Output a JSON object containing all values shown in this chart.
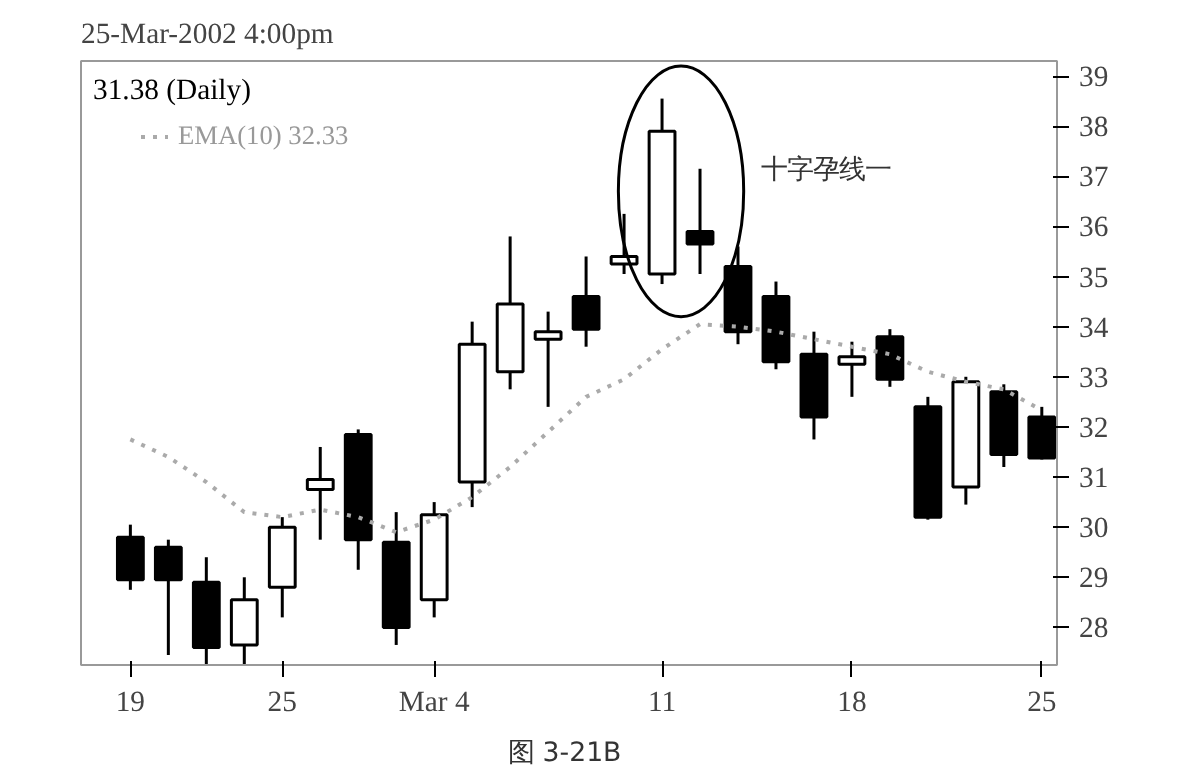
{
  "chart_data": {
    "type": "candlestick",
    "title": "31.38 (Daily)",
    "subtitle": "25-Mar-2002 4:00pm",
    "categories": [
      "19",
      null,
      null,
      null,
      "25",
      null,
      null,
      null,
      "Mar 4",
      null,
      null,
      null,
      null,
      null,
      "11",
      null,
      null,
      null,
      null,
      "18",
      null,
      null,
      null,
      null,
      "25"
    ],
    "ohlc": [
      [
        29.8,
        30.05,
        28.75,
        28.95
      ],
      [
        29.6,
        29.75,
        27.45,
        28.95
      ],
      [
        28.9,
        29.4,
        27.15,
        27.6
      ],
      [
        27.65,
        29.0,
        27.2,
        28.55
      ],
      [
        28.8,
        30.2,
        28.2,
        30.0
      ],
      [
        30.75,
        31.6,
        29.75,
        30.95
      ],
      [
        31.85,
        31.95,
        29.15,
        29.75
      ],
      [
        29.7,
        30.3,
        27.65,
        28.0
      ],
      [
        28.55,
        30.5,
        28.2,
        30.25
      ],
      [
        30.9,
        34.1,
        30.4,
        33.65
      ],
      [
        33.1,
        35.8,
        32.75,
        34.45
      ],
      [
        33.75,
        34.3,
        32.4,
        33.9
      ],
      [
        34.6,
        35.4,
        33.6,
        33.95
      ],
      [
        35.25,
        36.25,
        35.05,
        35.4
      ],
      [
        35.05,
        38.55,
        34.85,
        37.9
      ],
      [
        35.9,
        37.15,
        35.05,
        35.65
      ],
      [
        35.2,
        35.6,
        33.65,
        33.9
      ],
      [
        34.6,
        34.9,
        33.15,
        33.3
      ],
      [
        33.45,
        33.9,
        31.75,
        32.2
      ],
      [
        33.25,
        33.7,
        32.6,
        33.4
      ],
      [
        33.8,
        33.95,
        32.8,
        32.95
      ],
      [
        32.4,
        32.6,
        30.15,
        30.2
      ],
      [
        30.8,
        33.0,
        30.45,
        32.9
      ],
      [
        32.7,
        32.85,
        31.2,
        31.45
      ],
      [
        32.2,
        32.4,
        31.35,
        31.38
      ]
    ],
    "series": [
      {
        "name": "EMA(10) 32.33",
        "type": "line",
        "color": "#aaaaaa",
        "line_style": "dotted",
        "values": [
          31.75,
          31.4,
          30.9,
          30.3,
          30.2,
          30.35,
          30.2,
          29.9,
          30.15,
          30.6,
          31.2,
          31.9,
          32.6,
          32.95,
          33.55,
          34.05,
          34.0,
          33.9,
          33.75,
          33.6,
          33.45,
          33.1,
          32.9,
          32.75,
          32.33
        ]
      }
    ],
    "ylim": [
      27.25,
      39.3
    ],
    "yticks": [
      28,
      29,
      30,
      31,
      32,
      33,
      34,
      35,
      36,
      37,
      38,
      39
    ],
    "grid": false,
    "legend": "top left",
    "annotations": [
      "十字孕线一",
      "图  3-21B"
    ]
  }
}
